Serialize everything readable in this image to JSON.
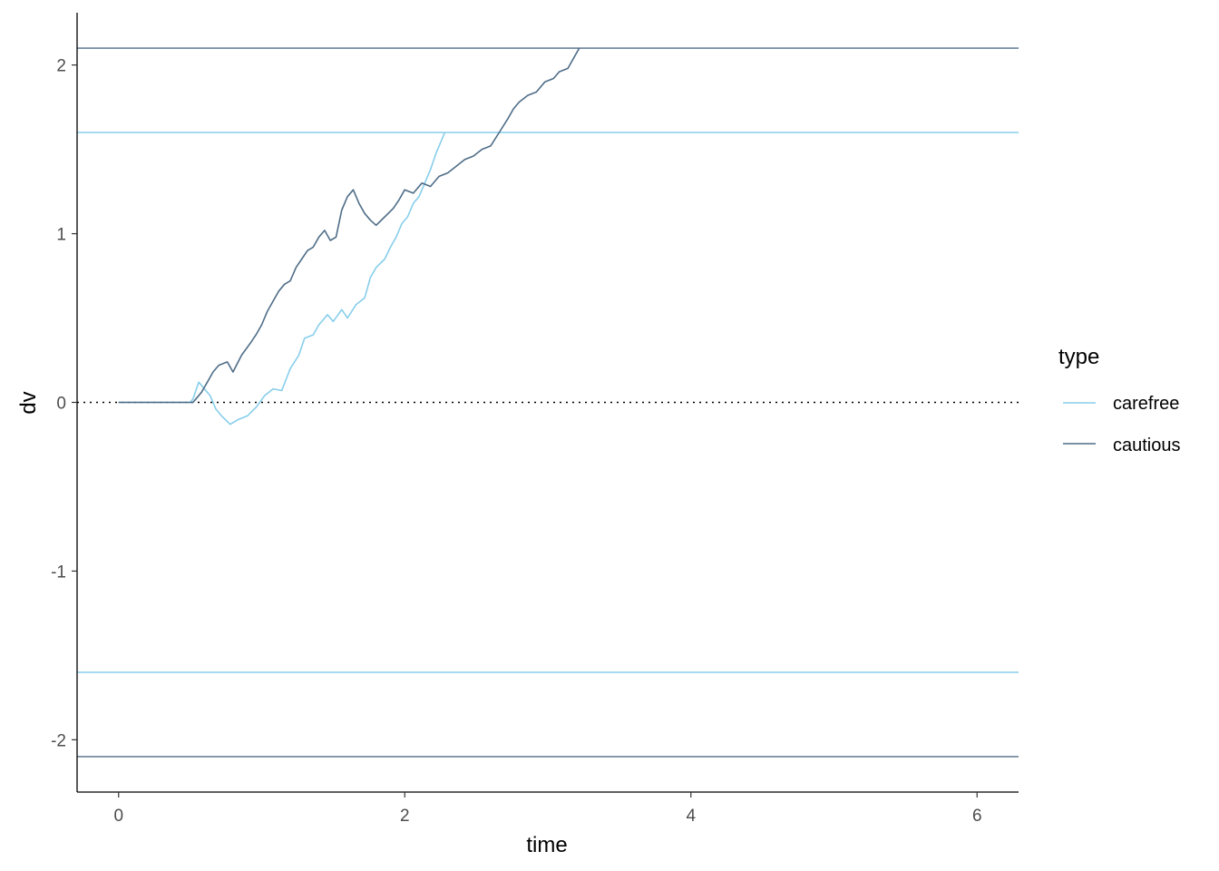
{
  "chart_data": {
    "type": "line",
    "xlabel": "time",
    "ylabel": "dv",
    "xlim": [
      -0.29,
      6.29
    ],
    "ylim": [
      -2.31,
      2.31
    ],
    "x_ticks": [
      0,
      2,
      4,
      6
    ],
    "y_ticks": [
      -2,
      -1,
      0,
      1,
      2
    ],
    "x_tick_labels": [
      "0",
      "2",
      "4",
      "6"
    ],
    "y_tick_labels": [
      "-2",
      "-1",
      "0",
      "1",
      "2"
    ],
    "grid": false,
    "legend": {
      "title": "type",
      "position": "right",
      "entries": [
        "carefree",
        "cautious"
      ]
    },
    "reference_lines": [
      {
        "y": 0,
        "style": "dotted",
        "color": "#000000"
      },
      {
        "y": 1.6,
        "series": "carefree",
        "color": "#87CEEB"
      },
      {
        "y": -1.6,
        "series": "carefree",
        "color": "#87CEEB"
      },
      {
        "y": 2.1,
        "series": "cautious",
        "color": "#4F6D87"
      },
      {
        "y": -2.1,
        "series": "cautious",
        "color": "#4F6D87"
      }
    ],
    "series": [
      {
        "name": "carefree",
        "color": "#87CEEB",
        "points": [
          [
            0,
            0
          ],
          [
            0.5,
            0
          ],
          [
            0.52,
            0.02
          ],
          [
            0.56,
            0.12
          ],
          [
            0.6,
            0.08
          ],
          [
            0.64,
            0.04
          ],
          [
            0.68,
            -0.04
          ],
          [
            0.72,
            -0.08
          ],
          [
            0.78,
            -0.13
          ],
          [
            0.84,
            -0.1
          ],
          [
            0.9,
            -0.08
          ],
          [
            0.96,
            -0.03
          ],
          [
            1.02,
            0.04
          ],
          [
            1.08,
            0.08
          ],
          [
            1.14,
            0.07
          ],
          [
            1.2,
            0.2
          ],
          [
            1.26,
            0.28
          ],
          [
            1.3,
            0.38
          ],
          [
            1.36,
            0.4
          ],
          [
            1.4,
            0.46
          ],
          [
            1.46,
            0.52
          ],
          [
            1.5,
            0.48
          ],
          [
            1.56,
            0.55
          ],
          [
            1.6,
            0.5
          ],
          [
            1.66,
            0.58
          ],
          [
            1.72,
            0.62
          ],
          [
            1.76,
            0.74
          ],
          [
            1.8,
            0.8
          ],
          [
            1.86,
            0.85
          ],
          [
            1.9,
            0.92
          ],
          [
            1.94,
            0.98
          ],
          [
            1.98,
            1.06
          ],
          [
            2.02,
            1.1
          ],
          [
            2.06,
            1.18
          ],
          [
            2.1,
            1.22
          ],
          [
            2.14,
            1.3
          ],
          [
            2.18,
            1.38
          ],
          [
            2.22,
            1.48
          ],
          [
            2.26,
            1.56
          ],
          [
            2.28,
            1.6
          ]
        ]
      },
      {
        "name": "cautious",
        "color": "#4F6D87",
        "points": [
          [
            0,
            0
          ],
          [
            0.52,
            0
          ],
          [
            0.54,
            0.02
          ],
          [
            0.58,
            0.06
          ],
          [
            0.62,
            0.12
          ],
          [
            0.66,
            0.18
          ],
          [
            0.7,
            0.22
          ],
          [
            0.76,
            0.24
          ],
          [
            0.8,
            0.18
          ],
          [
            0.86,
            0.28
          ],
          [
            0.92,
            0.35
          ],
          [
            0.96,
            0.4
          ],
          [
            1.0,
            0.46
          ],
          [
            1.04,
            0.54
          ],
          [
            1.08,
            0.6
          ],
          [
            1.12,
            0.66
          ],
          [
            1.16,
            0.7
          ],
          [
            1.2,
            0.72
          ],
          [
            1.24,
            0.8
          ],
          [
            1.28,
            0.85
          ],
          [
            1.32,
            0.9
          ],
          [
            1.36,
            0.92
          ],
          [
            1.4,
            0.98
          ],
          [
            1.44,
            1.02
          ],
          [
            1.48,
            0.96
          ],
          [
            1.52,
            0.98
          ],
          [
            1.56,
            1.14
          ],
          [
            1.6,
            1.22
          ],
          [
            1.64,
            1.26
          ],
          [
            1.68,
            1.18
          ],
          [
            1.72,
            1.12
          ],
          [
            1.76,
            1.08
          ],
          [
            1.8,
            1.05
          ],
          [
            1.86,
            1.1
          ],
          [
            1.92,
            1.15
          ],
          [
            1.96,
            1.2
          ],
          [
            2.0,
            1.26
          ],
          [
            2.06,
            1.24
          ],
          [
            2.12,
            1.3
          ],
          [
            2.18,
            1.28
          ],
          [
            2.24,
            1.34
          ],
          [
            2.3,
            1.36
          ],
          [
            2.36,
            1.4
          ],
          [
            2.42,
            1.44
          ],
          [
            2.48,
            1.46
          ],
          [
            2.54,
            1.5
          ],
          [
            2.6,
            1.52
          ],
          [
            2.66,
            1.6
          ],
          [
            2.72,
            1.68
          ],
          [
            2.76,
            1.74
          ],
          [
            2.8,
            1.78
          ],
          [
            2.86,
            1.82
          ],
          [
            2.92,
            1.84
          ],
          [
            2.98,
            1.9
          ],
          [
            3.04,
            1.92
          ],
          [
            3.08,
            1.96
          ],
          [
            3.14,
            1.98
          ],
          [
            3.18,
            2.04
          ],
          [
            3.22,
            2.1
          ]
        ]
      }
    ]
  }
}
